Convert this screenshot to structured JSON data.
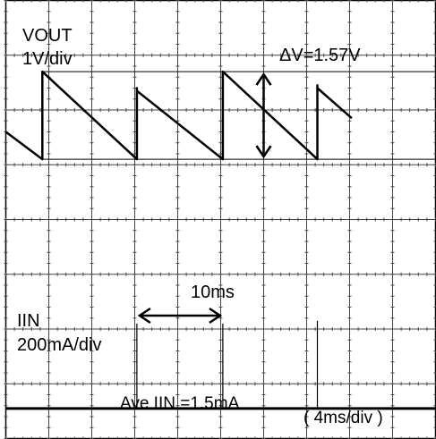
{
  "chart_data": {
    "type": "line",
    "title": "",
    "grid": true,
    "divisions": {
      "x": 10,
      "y": 8
    },
    "time_base": "( 4ms/div )",
    "channels": [
      {
        "name": "VOUT",
        "scale": "1V/div",
        "waveform": "sawtooth",
        "x_units": "div",
        "y_units": "div from top",
        "upper_ref_div": 1.3,
        "lower_ref_div": 2.9,
        "points": [
          [
            0.0,
            2.4
          ],
          [
            0.85,
            2.9
          ],
          [
            0.85,
            1.3
          ],
          [
            3.05,
            2.9
          ],
          [
            3.05,
            1.6
          ],
          [
            3.05,
            1.65
          ],
          [
            5.05,
            2.9
          ],
          [
            5.05,
            1.3
          ],
          [
            7.25,
            2.9
          ],
          [
            7.25,
            1.55
          ],
          [
            7.25,
            1.6
          ],
          [
            8.05,
            2.15
          ]
        ]
      },
      {
        "name": "IIN",
        "scale": "200mA/div",
        "waveform": "pulses",
        "baseline_div": 7.45,
        "pulse_x_div": [
          3.05,
          5.05,
          7.25
        ],
        "pulse_top_div": [
          5.9,
          5.9,
          5.85
        ]
      }
    ],
    "annotations": {
      "vout_label": "VOUT",
      "vout_scale": "1V/div",
      "delta_v": "ΔV=1.57V",
      "period": "10ms",
      "iin_label": "IIN",
      "iin_scale": "200mA/div",
      "ave_iin": "Ave IIN =1.5mA",
      "time_base": "( 4ms/div )"
    }
  }
}
